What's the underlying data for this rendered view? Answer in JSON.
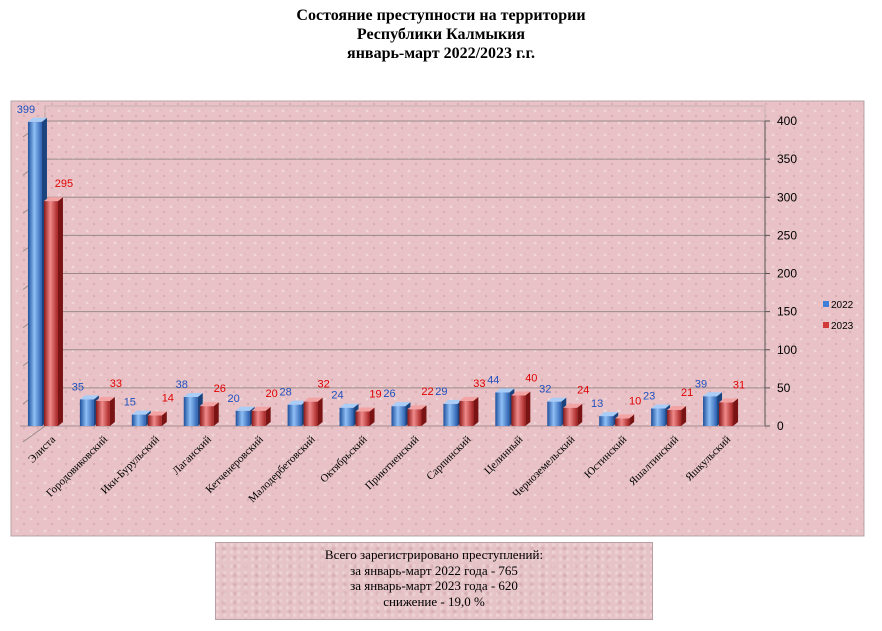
{
  "title_lines": [
    "Состояние преступности на территории",
    "Республики Калмыкия",
    "январь-март 2022/2023 г.г."
  ],
  "summary_lines": [
    "Всего зарегистрировано преступлений:",
    "за январь-март 2022 года -  765",
    "за январь-март 2023 года - 620",
    "снижение  - 19,0  %"
  ],
  "colors": {
    "series_2022": "#3f7fd6",
    "series_2023": "#d23a3a",
    "label_2022": "#1f4fbf",
    "label_2023": "#e00000",
    "plot_bg": "#e8c2c6"
  },
  "chart_data": {
    "type": "bar",
    "title": "Состояние преступности на территории Республики Калмыкия январь-март 2022/2023 г.г.",
    "categories": [
      "Элиста",
      "Городовиковский",
      "Ики-Бурульский",
      "Лаганский",
      "Кетченеровский",
      "Малодербетовский",
      "Октябрьский",
      "Приютненский",
      "Сарпинский",
      "Целинный",
      "Черноземельский",
      "Юстинский",
      "Яшалтинский",
      "Яшкульский"
    ],
    "series": [
      {
        "name": "2022",
        "values": [
          399,
          35,
          15,
          38,
          20,
          28,
          24,
          26,
          29,
          44,
          32,
          13,
          23,
          39
        ]
      },
      {
        "name": "2023",
        "values": [
          295,
          33,
          14,
          26,
          20,
          32,
          19,
          22,
          33,
          40,
          24,
          10,
          21,
          31
        ]
      }
    ],
    "ylim": [
      0,
      400
    ],
    "y_ticks": [
      0,
      50,
      100,
      150,
      200,
      250,
      300,
      350,
      400
    ],
    "y_tick_labels": [
      "0",
      "50",
      "100",
      "150",
      "200",
      "250",
      "300",
      "350",
      "400"
    ],
    "y_axis_side": "right",
    "grid": true,
    "legend": [
      "2022",
      "2023"
    ],
    "legend_position": "right"
  }
}
